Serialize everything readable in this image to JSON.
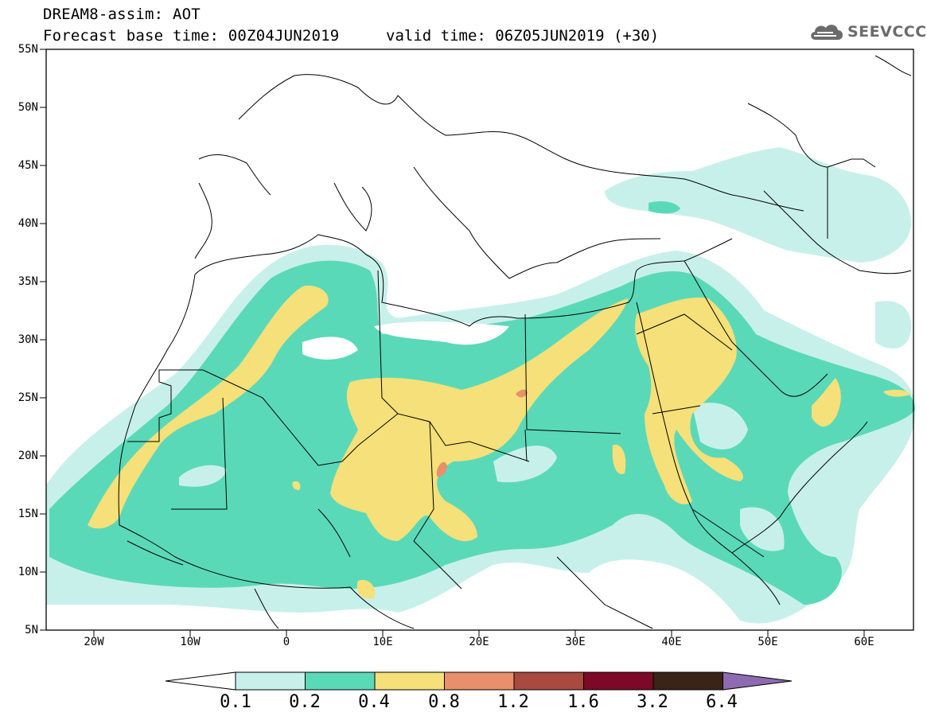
{
  "header": {
    "title_line1": "DREAM8-assim: AOT",
    "title_line2": "Forecast base time: 00Z04JUN2019",
    "valid_time": "valid time: 06Z05JUN2019 (+30)",
    "logo_text": "SEEVCCC"
  },
  "map": {
    "lon_range": [
      -25,
      65
    ],
    "lat_range": [
      5,
      55
    ],
    "lat_labels": [
      "55N",
      "50N",
      "45N",
      "40N",
      "35N",
      "30N",
      "25N",
      "20N",
      "15N",
      "10N",
      "5N"
    ],
    "lon_labels": [
      "20W",
      "10W",
      "0",
      "10E",
      "20E",
      "30E",
      "40E",
      "50E",
      "60E"
    ],
    "frame_color": "#000000",
    "coast_color": "#000000"
  },
  "legend": {
    "thresholds": [
      "0.1",
      "0.2",
      "0.4",
      "0.8",
      "1.2",
      "1.6",
      "3.2",
      "6.4"
    ],
    "colors": [
      "#ffffff",
      "#c8f0ea",
      "#5ad9b8",
      "#f5e079",
      "#e8906a",
      "#a84a3d",
      "#7c0a26",
      "#3a2417",
      "#8e6bb0"
    ]
  }
}
